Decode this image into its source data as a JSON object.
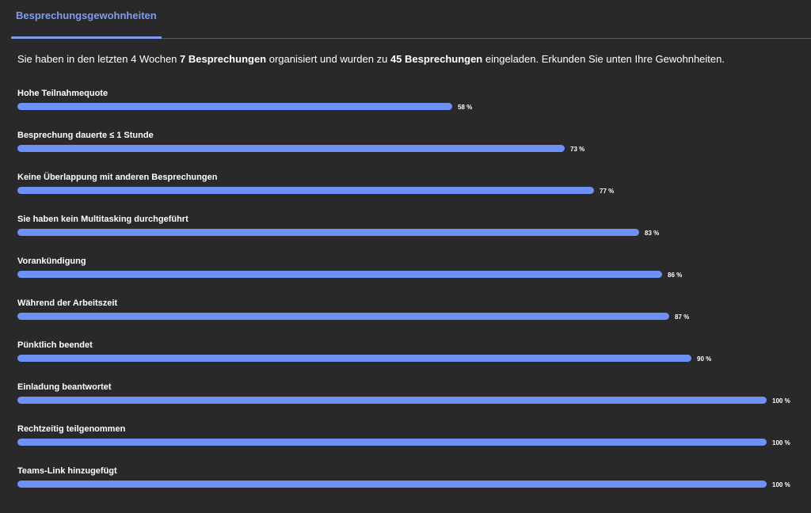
{
  "tabs": [
    {
      "label": "Besprechungsgewohnheiten",
      "active": true
    }
  ],
  "intro": {
    "part1": "Sie haben in den letzten 4 Wochen ",
    "organized": "7 Besprechungen",
    "part2": " organisiert und wurden zu ",
    "invited": "45 Besprechungen",
    "part3": " eingeladen. Erkunden Sie unten Ihre Gewohnheiten."
  },
  "colors": {
    "accent": "#7f9cf5",
    "bar": "#6d91f5",
    "background": "#292929"
  },
  "metrics": [
    {
      "label": "Hohe Teilnahmequote",
      "percent": 58,
      "value_text": "58 %"
    },
    {
      "label": "Besprechung dauerte ≤ 1 Stunde",
      "percent": 73,
      "value_text": "73 %"
    },
    {
      "label": "Keine Überlappung mit anderen Besprechungen",
      "percent": 77,
      "value_text": "77 %"
    },
    {
      "label": "Sie haben kein Multitasking durchgeführt",
      "percent": 83,
      "value_text": "83 %"
    },
    {
      "label": "Vorankündigung",
      "percent": 86,
      "value_text": "86 %"
    },
    {
      "label": "Während der Arbeitszeit",
      "percent": 87,
      "value_text": "87 %"
    },
    {
      "label": "Pünktlich beendet",
      "percent": 90,
      "value_text": "90 %"
    },
    {
      "label": "Einladung beantwortet",
      "percent": 100,
      "value_text": "100 %"
    },
    {
      "label": "Rechtzeitig teilgenommen",
      "percent": 100,
      "value_text": "100 %"
    },
    {
      "label": "Teams-Link hinzugefügt",
      "percent": 100,
      "value_text": "100 %"
    }
  ]
}
